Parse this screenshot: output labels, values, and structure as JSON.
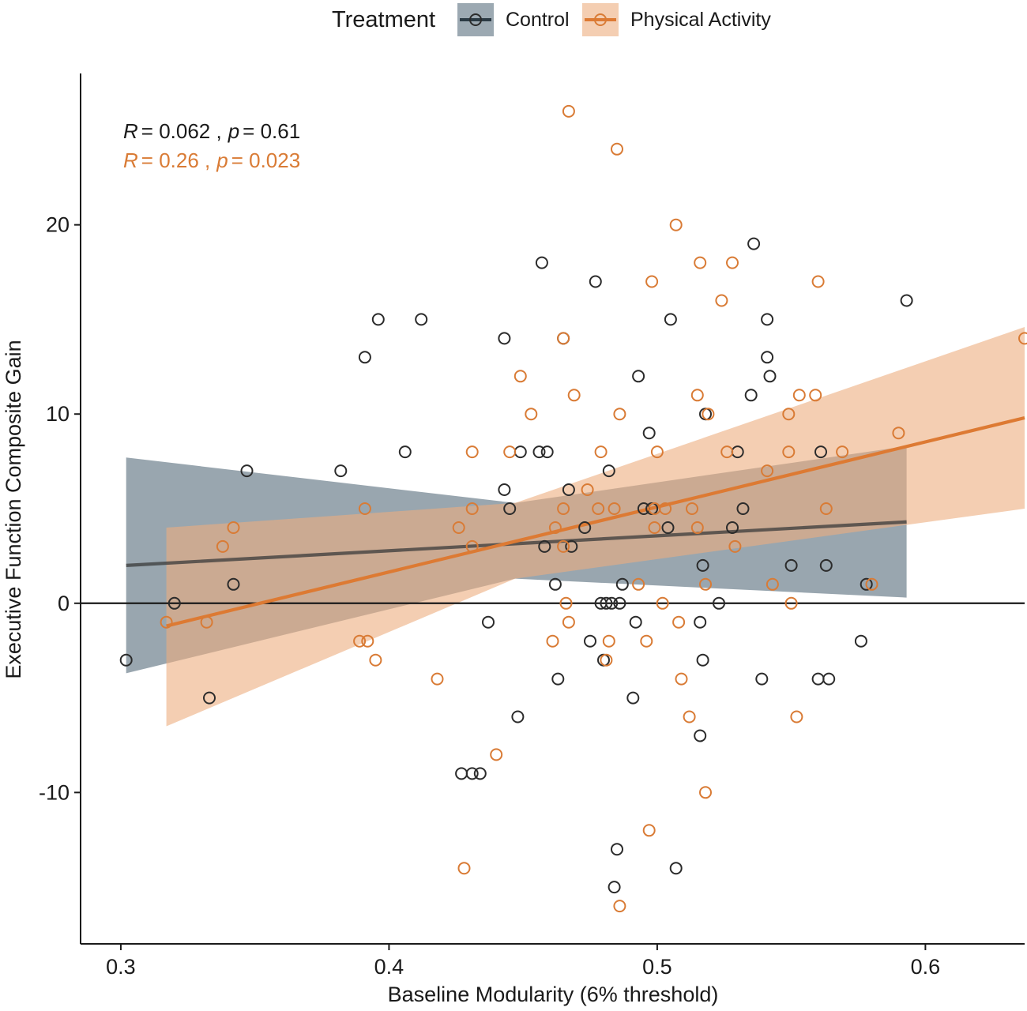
{
  "chart_data": {
    "type": "scatter",
    "title": "",
    "xlabel": "Baseline Modularity (6% threshold)",
    "ylabel": "Executive Function Composite Gain",
    "xlim": [
      0.285,
      0.637
    ],
    "ylim": [
      -18.0,
      28.0
    ],
    "x_ticks": [
      0.3,
      0.4,
      0.5,
      0.6
    ],
    "x_tick_labels": [
      "0.3",
      "0.4",
      "0.5",
      "0.6"
    ],
    "y_ticks": [
      -10,
      0,
      10,
      20
    ],
    "y_tick_labels": [
      "-10",
      "0",
      "10",
      "20"
    ],
    "reference_line_y": 0,
    "legend": {
      "title": "Treatment",
      "position": "top",
      "entries": [
        "Control",
        "Physical Activity"
      ]
    },
    "colors": {
      "Control": "#2b2b2b",
      "Physical Activity": "#d97b35",
      "control_line": "#3a3a3a",
      "control_band": "#5a6f7e",
      "pa_line": "#dd7a33",
      "pa_band": "#ecad7e"
    },
    "stats": [
      {
        "series": "Control",
        "r_label": "R",
        "r_value": "= 0.062 ,",
        "p_label": "p",
        "p_value": "= 0.61"
      },
      {
        "series": "Physical Activity",
        "r_label": "R",
        "r_value": "= 0.26 ,",
        "p_label": "p",
        "p_value": "= 0.023"
      }
    ],
    "series": [
      {
        "name": "Control",
        "points": [
          [
            0.302,
            -3
          ],
          [
            0.333,
            -5
          ],
          [
            0.342,
            1
          ],
          [
            0.347,
            7
          ],
          [
            0.32,
            0
          ],
          [
            0.382,
            7
          ],
          [
            0.391,
            13
          ],
          [
            0.396,
            15
          ],
          [
            0.406,
            8
          ],
          [
            0.412,
            15
          ],
          [
            0.427,
            -9
          ],
          [
            0.431,
            -9
          ],
          [
            0.434,
            -9
          ],
          [
            0.437,
            -1
          ],
          [
            0.443,
            14
          ],
          [
            0.443,
            6
          ],
          [
            0.445,
            5
          ],
          [
            0.448,
            -6
          ],
          [
            0.449,
            8
          ],
          [
            0.456,
            8
          ],
          [
            0.457,
            18
          ],
          [
            0.459,
            8
          ],
          [
            0.458,
            3
          ],
          [
            0.462,
            1
          ],
          [
            0.463,
            -4
          ],
          [
            0.465,
            14
          ],
          [
            0.467,
            6
          ],
          [
            0.468,
            3
          ],
          [
            0.473,
            4
          ],
          [
            0.475,
            -2
          ],
          [
            0.477,
            17
          ],
          [
            0.479,
            0
          ],
          [
            0.48,
            -3
          ],
          [
            0.481,
            0
          ],
          [
            0.482,
            7
          ],
          [
            0.483,
            0
          ],
          [
            0.484,
            -15
          ],
          [
            0.485,
            -13
          ],
          [
            0.486,
            0
          ],
          [
            0.487,
            1
          ],
          [
            0.491,
            -5
          ],
          [
            0.492,
            -1
          ],
          [
            0.493,
            12
          ],
          [
            0.495,
            5
          ],
          [
            0.497,
            9
          ],
          [
            0.498,
            5
          ],
          [
            0.504,
            4
          ],
          [
            0.505,
            15
          ],
          [
            0.507,
            -14
          ],
          [
            0.516,
            -7
          ],
          [
            0.516,
            -1
          ],
          [
            0.517,
            -3
          ],
          [
            0.517,
            2
          ],
          [
            0.518,
            10
          ],
          [
            0.523,
            0
          ],
          [
            0.528,
            4
          ],
          [
            0.53,
            8
          ],
          [
            0.532,
            5
          ],
          [
            0.535,
            11
          ],
          [
            0.536,
            19
          ],
          [
            0.539,
            -4
          ],
          [
            0.541,
            15
          ],
          [
            0.541,
            13
          ],
          [
            0.542,
            12
          ],
          [
            0.55,
            2
          ],
          [
            0.56,
            -4
          ],
          [
            0.561,
            8
          ],
          [
            0.563,
            2
          ],
          [
            0.564,
            -4
          ],
          [
            0.576,
            -2
          ],
          [
            0.578,
            1
          ],
          [
            0.593,
            16
          ]
        ]
      },
      {
        "name": "Physical Activity",
        "points": [
          [
            0.317,
            -1
          ],
          [
            0.338,
            3
          ],
          [
            0.342,
            4
          ],
          [
            0.332,
            -1
          ],
          [
            0.389,
            -2
          ],
          [
            0.391,
            5
          ],
          [
            0.392,
            -2
          ],
          [
            0.395,
            -3
          ],
          [
            0.418,
            -4
          ],
          [
            0.428,
            -14
          ],
          [
            0.426,
            4
          ],
          [
            0.431,
            8
          ],
          [
            0.431,
            5
          ],
          [
            0.431,
            3
          ],
          [
            0.44,
            -8
          ],
          [
            0.445,
            8
          ],
          [
            0.449,
            12
          ],
          [
            0.453,
            10
          ],
          [
            0.461,
            -2
          ],
          [
            0.462,
            4
          ],
          [
            0.465,
            5
          ],
          [
            0.465,
            14
          ],
          [
            0.465,
            3
          ],
          [
            0.466,
            0
          ],
          [
            0.467,
            26
          ],
          [
            0.467,
            -1
          ],
          [
            0.469,
            11
          ],
          [
            0.474,
            6
          ],
          [
            0.478,
            5
          ],
          [
            0.479,
            8
          ],
          [
            0.481,
            -3
          ],
          [
            0.482,
            -2
          ],
          [
            0.484,
            5
          ],
          [
            0.485,
            24
          ],
          [
            0.486,
            10
          ],
          [
            0.486,
            -16
          ],
          [
            0.493,
            1
          ],
          [
            0.496,
            -2
          ],
          [
            0.497,
            -12
          ],
          [
            0.498,
            17
          ],
          [
            0.499,
            5
          ],
          [
            0.499,
            4
          ],
          [
            0.5,
            8
          ],
          [
            0.502,
            0
          ],
          [
            0.503,
            5
          ],
          [
            0.507,
            20
          ],
          [
            0.508,
            -1
          ],
          [
            0.509,
            -4
          ],
          [
            0.512,
            -6
          ],
          [
            0.513,
            5
          ],
          [
            0.515,
            11
          ],
          [
            0.515,
            4
          ],
          [
            0.516,
            18
          ],
          [
            0.518,
            -10
          ],
          [
            0.518,
            1
          ],
          [
            0.519,
            10
          ],
          [
            0.524,
            16
          ],
          [
            0.526,
            8
          ],
          [
            0.528,
            18
          ],
          [
            0.529,
            3
          ],
          [
            0.541,
            7
          ],
          [
            0.543,
            1
          ],
          [
            0.549,
            10
          ],
          [
            0.549,
            8
          ],
          [
            0.55,
            0
          ],
          [
            0.552,
            -6
          ],
          [
            0.553,
            11
          ],
          [
            0.559,
            11
          ],
          [
            0.56,
            17
          ],
          [
            0.563,
            5
          ],
          [
            0.569,
            8
          ],
          [
            0.58,
            1
          ],
          [
            0.59,
            9
          ],
          [
            0.637,
            14
          ]
        ]
      }
    ],
    "fits": [
      {
        "series": "Control",
        "line": [
          [
            0.302,
            2.0
          ],
          [
            0.593,
            4.3
          ]
        ],
        "band_upper": [
          [
            0.302,
            7.7
          ],
          [
            0.447,
            5.3
          ],
          [
            0.593,
            8.3
          ]
        ],
        "band_lower": [
          [
            0.302,
            -3.7
          ],
          [
            0.447,
            1.3
          ],
          [
            0.593,
            0.3
          ]
        ]
      },
      {
        "series": "Physical Activity",
        "line": [
          [
            0.317,
            -1.2
          ],
          [
            0.637,
            9.8
          ]
        ],
        "band_upper": [
          [
            0.317,
            4.0
          ],
          [
            0.447,
            5.3
          ],
          [
            0.637,
            14.6
          ]
        ],
        "band_lower": [
          [
            0.317,
            -6.5
          ],
          [
            0.447,
            1.3
          ],
          [
            0.637,
            5.0
          ]
        ]
      }
    ]
  }
}
